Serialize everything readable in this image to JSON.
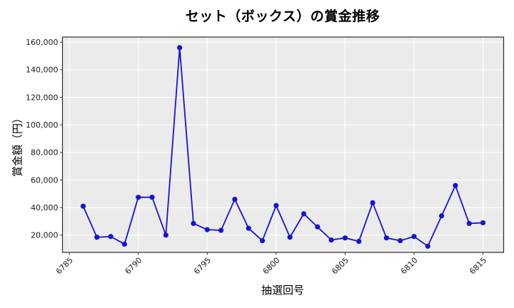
{
  "figure": {
    "background": "#ffffff"
  },
  "chart_data": {
    "type": "line",
    "title": "セット（ボックス）の賞金推移",
    "xlabel": "抽選回号",
    "ylabel": "賞金額（円）",
    "x": [
      6786,
      6787,
      6788,
      6789,
      6790,
      6791,
      6792,
      6793,
      6794,
      6795,
      6796,
      6797,
      6798,
      6799,
      6800,
      6801,
      6802,
      6803,
      6804,
      6805,
      6806,
      6807,
      6808,
      6809,
      6810,
      6811,
      6812,
      6813,
      6814,
      6815
    ],
    "values": [
      41000,
      18500,
      19000,
      13500,
      47500,
      47500,
      20000,
      156000,
      28500,
      24000,
      23500,
      46000,
      25000,
      16000,
      41500,
      18500,
      35500,
      26000,
      16500,
      18000,
      15500,
      43500,
      18000,
      16000,
      19000,
      12000,
      34000,
      56000,
      28500,
      29000
    ],
    "x_ticks": [
      6785,
      6790,
      6795,
      6800,
      6805,
      6810,
      6815
    ],
    "y_ticks": [
      20000,
      40000,
      60000,
      80000,
      100000,
      120000,
      140000,
      160000
    ],
    "y_tick_labels": [
      "20,000",
      "40,000",
      "60,000",
      "80,000",
      "100,000",
      "120,000",
      "140,000",
      "160,000"
    ],
    "xlim": [
      6784.5,
      6816.5
    ],
    "ylim": [
      7500,
      163700
    ],
    "grid": true,
    "legend_position": "none",
    "line_color": "#1414d6",
    "marker_color": "#1414d6",
    "plot_bg": "#ebebeb",
    "grid_color": "#ffffff",
    "spine_color": "#2a2a2a",
    "tick_color": "#333333"
  }
}
